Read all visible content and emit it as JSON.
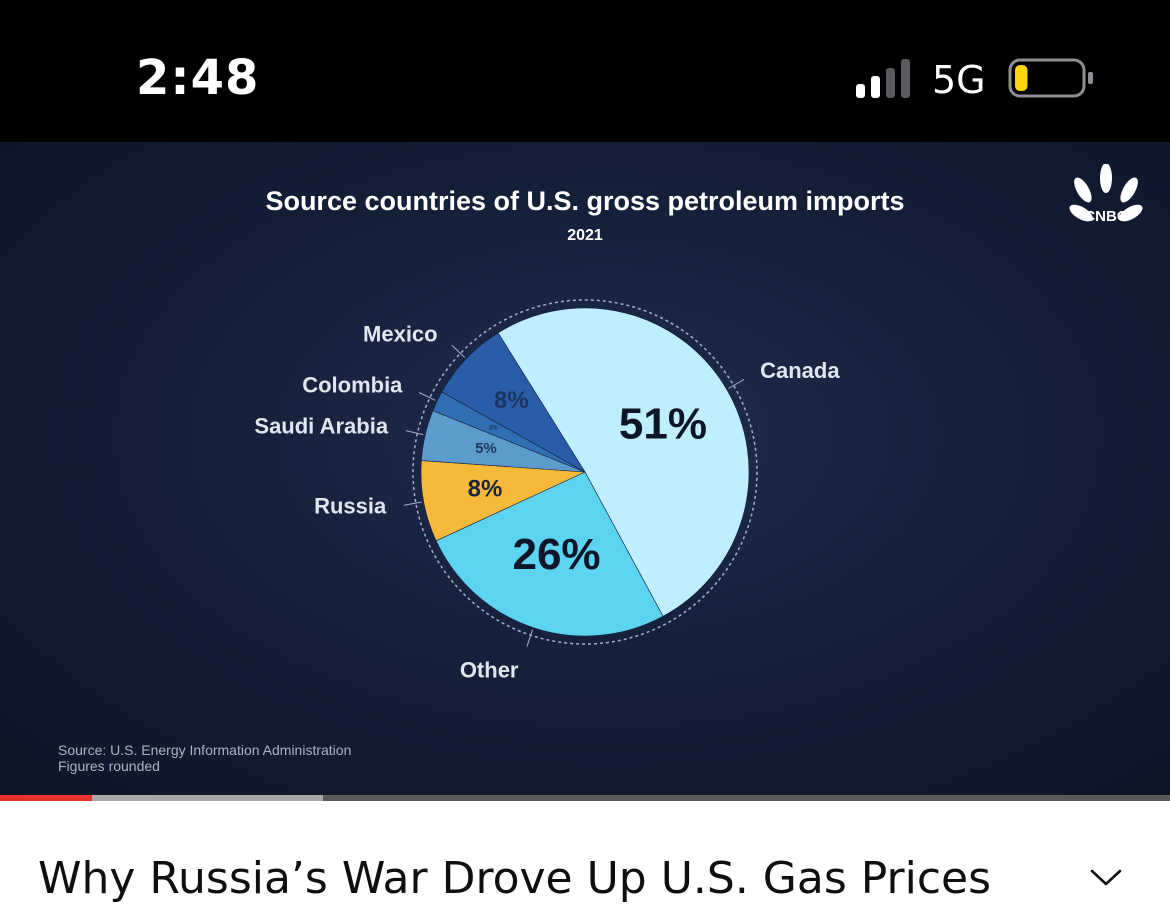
{
  "status_bar": {
    "time": "2:48",
    "network": "5G",
    "signal_bars_active": 2,
    "signal_bars_total": 4,
    "battery_level": 0.15,
    "battery_color": "#ffd60a"
  },
  "video": {
    "logo": "CNBC",
    "source_note": "Source: U.S. Energy Information Administration",
    "rounding_note": "Figures rounded",
    "progress": {
      "played": 0.079,
      "buffered": 0.276,
      "played_color": "#e8322c"
    }
  },
  "chart_data": {
    "type": "pie",
    "title": "Source countries of U.S. gross petroleum imports",
    "subtitle": "2021",
    "slices": [
      {
        "label": "Canada",
        "value": 51,
        "value_label": "51%",
        "color": "#bfefff"
      },
      {
        "label": "Other",
        "value": 26,
        "value_label": "26%",
        "color": "#5cd3f0"
      },
      {
        "label": "Russia",
        "value": 8,
        "value_label": "8%",
        "color": "#f6b93a"
      },
      {
        "label": "Saudi Arabia",
        "value": 5,
        "value_label": "5%",
        "color": "#5c9ccc"
      },
      {
        "label": "Colombia",
        "value": 2,
        "value_label": "2%",
        "color": "#2f6fb2"
      },
      {
        "label": "Mexico",
        "value": 8,
        "value_label": "8%",
        "color": "#2a5da8"
      }
    ]
  },
  "video_title": "Why Russia’s War Drove Up U.S. Gas Prices",
  "icons": {
    "expand": "chevron-down-icon",
    "signal": "cellular-signal-icon",
    "battery": "battery-icon",
    "logo": "cnbc-peacock-logo"
  }
}
